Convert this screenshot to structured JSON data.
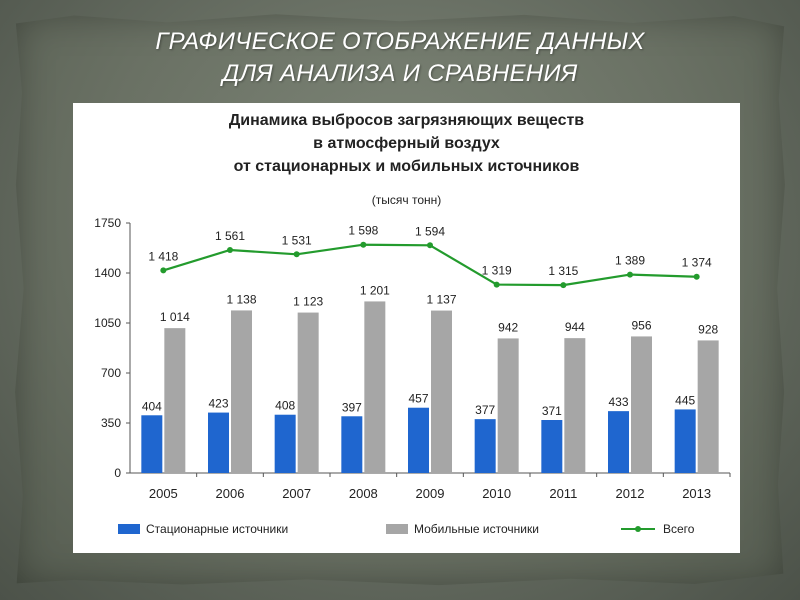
{
  "slide": {
    "title_line1": "ГРАФИЧЕСКОЕ ОТОБРАЖЕНИЕ ДАННЫХ",
    "title_line2": "ДЛЯ АНАЛИЗА И СРАВНЕНИЯ"
  },
  "colors": {
    "stationary": "#1f66cf",
    "mobile": "#a6a6a6",
    "total": "#239b2d"
  },
  "chart_data": {
    "type": "bar",
    "title_lines": [
      "Динамика выбросов загрязняющих веществ",
      "в атмосферный воздух",
      "от стационарных и мобильных источников"
    ],
    "unit": "(тысяч тонн)",
    "categories": [
      "2005",
      "2006",
      "2007",
      "2008",
      "2009",
      "2010",
      "2011",
      "2012",
      "2013"
    ],
    "ylim": [
      0,
      1750
    ],
    "yticks": [
      0,
      350,
      700,
      1050,
      1400,
      1750
    ],
    "series": [
      {
        "name": "Стационарные источники",
        "kind": "bar",
        "values": [
          404,
          423,
          408,
          397,
          457,
          377,
          371,
          433,
          445
        ],
        "labels": [
          "404",
          "423",
          "408",
          "397",
          "457",
          "377",
          "371",
          "433",
          "445"
        ]
      },
      {
        "name": "Мобильные источники",
        "kind": "bar",
        "values": [
          1014,
          1138,
          1123,
          1201,
          1137,
          942,
          944,
          956,
          928
        ],
        "labels": [
          "1 014",
          "1 138",
          "1 123",
          "1 201",
          "1 137",
          "942",
          "944",
          "956",
          "928"
        ]
      },
      {
        "name": "Всего",
        "kind": "line",
        "values": [
          1418,
          1561,
          1531,
          1598,
          1594,
          1319,
          1315,
          1389,
          1374
        ],
        "labels": [
          "1 418",
          "1 561",
          "1 531",
          "1 598",
          "1 594",
          "1 319",
          "1 315",
          "1 389",
          "1 374"
        ]
      }
    ],
    "grid": false,
    "legend_position": "bottom"
  }
}
